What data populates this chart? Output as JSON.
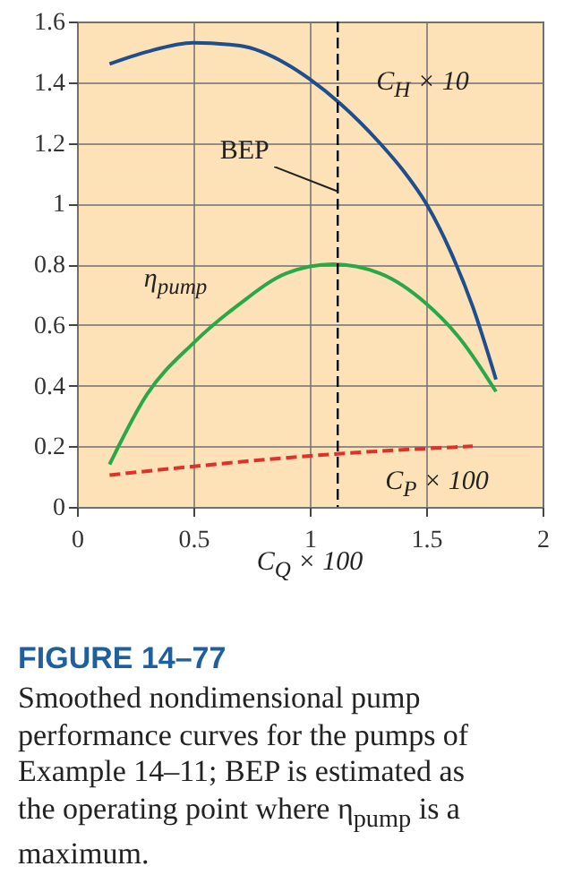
{
  "chart_data": {
    "type": "line",
    "title": "FIGURE 14–77",
    "xlabel": "C$_{Q}$ × 100",
    "annotations": [
      {
        "text": "BEP",
        "x": 1.12,
        "y": 1.04
      },
      "Smoothed nondimensional pump performance curves for the pumps of Example 14–11; BEP is estimated as the operating point where η$_{pump}$ is a maximum."
    ],
    "xlim": [
      0,
      2
    ],
    "xticks": [
      0,
      0.5,
      1,
      1.5,
      2
    ],
    "ylim": [
      0,
      1.6
    ],
    "yticks": [
      0,
      0.2,
      0.4,
      0.6,
      0.8,
      1,
      1.2,
      1.4,
      1.6
    ],
    "grid": true,
    "ref_lines": [
      {
        "axis": "x",
        "value": 1.12,
        "color": "#000000",
        "line_style": "dashed"
      }
    ],
    "series": [
      {
        "name": "C$_{H}$ × 10",
        "color": "#1f4e8c",
        "x": [
          0.14,
          0.3,
          0.5,
          0.7,
          0.9,
          1.0,
          1.13,
          1.3,
          1.4,
          1.5,
          1.6,
          1.7,
          1.8
        ],
        "values": [
          1.46,
          1.5,
          1.53,
          1.52,
          1.46,
          1.41,
          1.33,
          1.2,
          1.11,
          1.0,
          0.85,
          0.66,
          0.42
        ]
      },
      {
        "name": "η$_{pump}$",
        "color": "#2aa845",
        "x": [
          0.14,
          0.3,
          0.5,
          0.7,
          0.9,
          1.1,
          1.3,
          1.5,
          1.65,
          1.8
        ],
        "values": [
          0.14,
          0.37,
          0.54,
          0.67,
          0.77,
          0.8,
          0.77,
          0.67,
          0.55,
          0.38
        ]
      },
      {
        "name": "C$_{P}$ × 100",
        "color": "#e0302a",
        "line_style": "dashed",
        "x": [
          0.14,
          1.12,
          1.7
        ],
        "values": [
          0.105,
          0.175,
          0.2
        ]
      }
    ]
  }
}
